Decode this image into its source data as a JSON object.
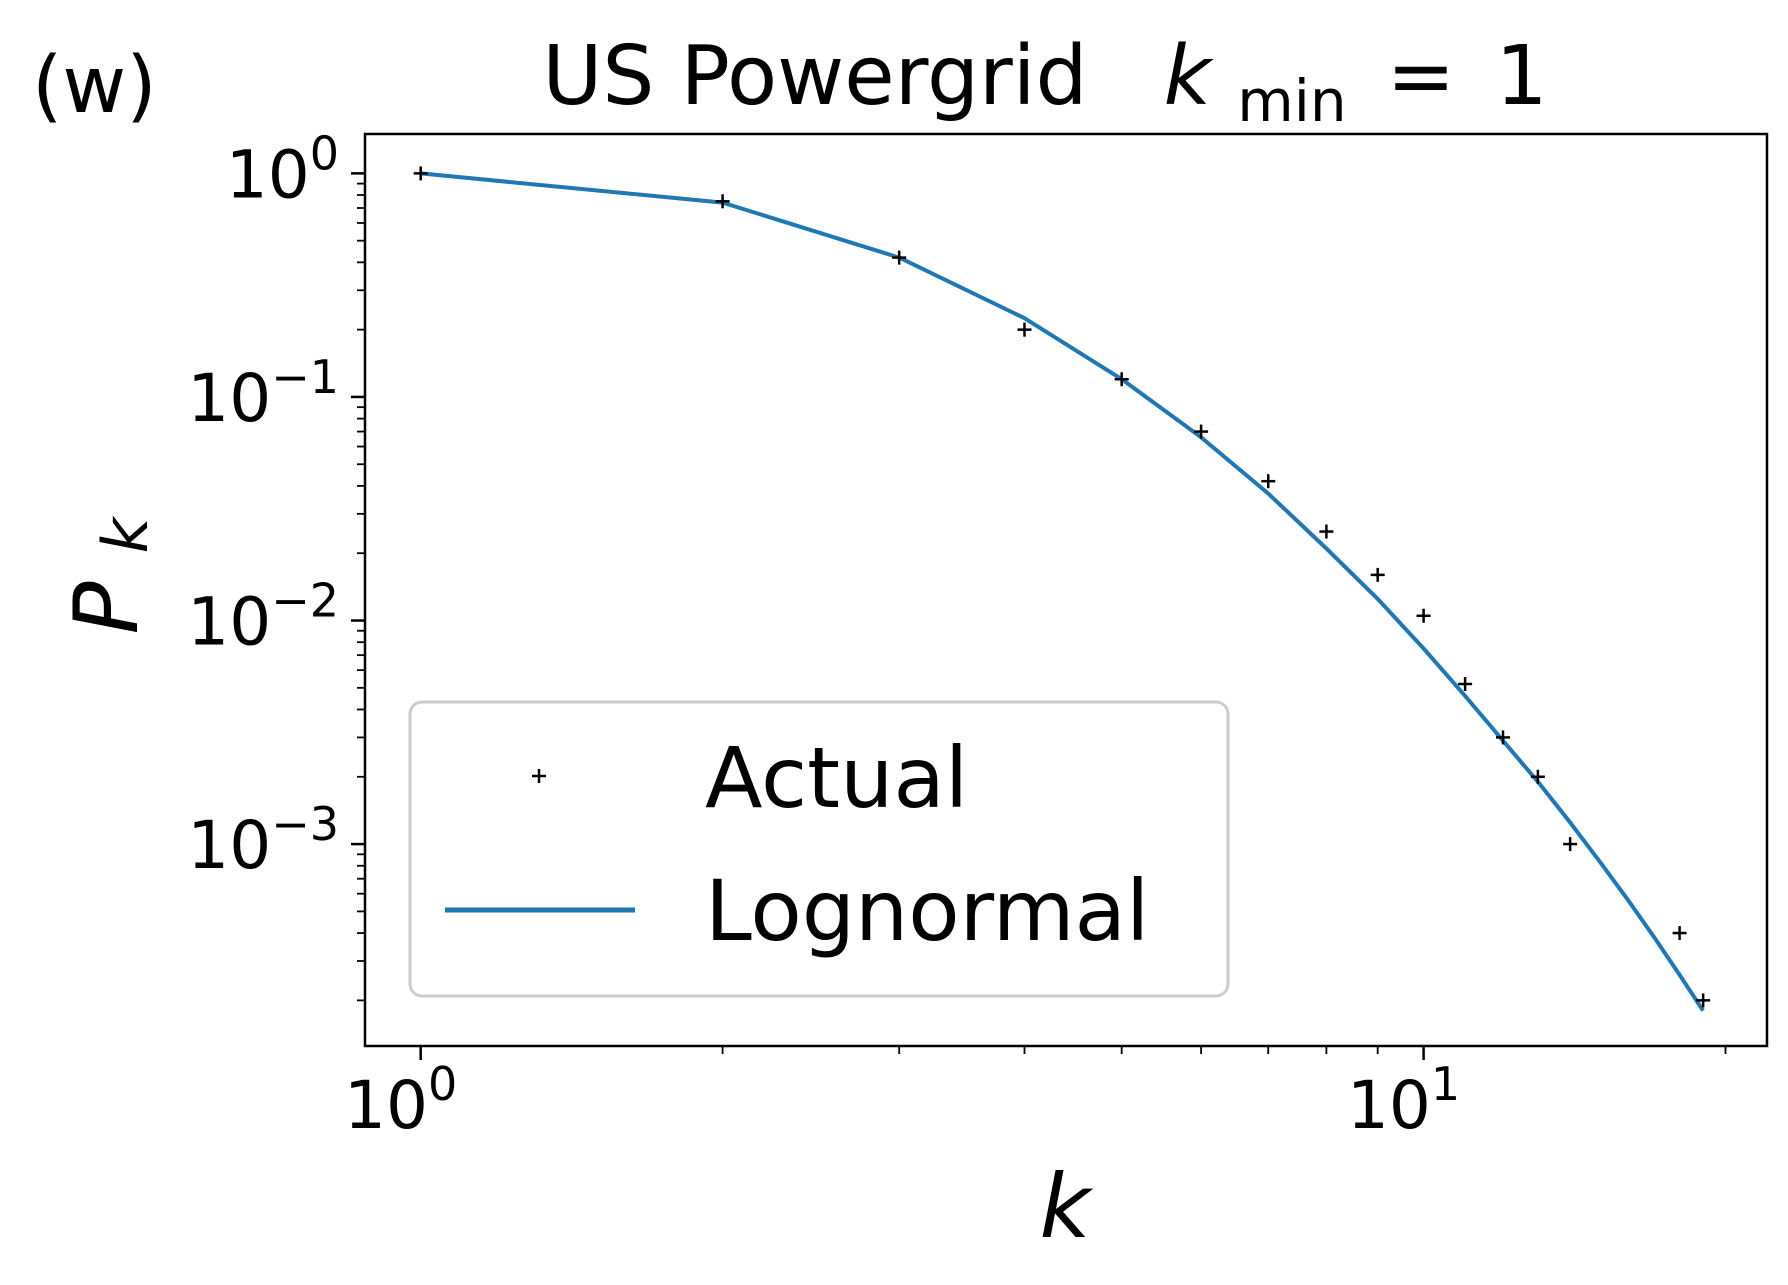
{
  "panel_label": "(w)",
  "title": {
    "prefix": "US Powergrid",
    "k_symbol": "k",
    "k_subscript": "min",
    "equals": "=",
    "value": "1"
  },
  "colors": {
    "lognormal": "#1f77b4",
    "actual": "#000000",
    "legend_border": "#cccccc"
  },
  "chart_data": {
    "type": "line",
    "x_scale": "log",
    "y_scale": "log",
    "xlabel": "k",
    "ylabel_main": "P",
    "ylabel_sub": "k",
    "xlim": [
      0.88,
      22
    ],
    "ylim": [
      0.000125,
      1.5
    ],
    "x_ticks": [
      {
        "value": 1,
        "base": "10",
        "exp": "0"
      },
      {
        "value": 10,
        "base": "10",
        "exp": "1"
      }
    ],
    "y_ticks": [
      {
        "value": 1,
        "base": "10",
        "exp": "0"
      },
      {
        "value": 0.1,
        "base": "10",
        "exp": "−1"
      },
      {
        "value": 0.01,
        "base": "10",
        "exp": "−2"
      },
      {
        "value": 0.001,
        "base": "10",
        "exp": "−3"
      }
    ],
    "grid": false,
    "legend_position": "lower-left",
    "series": [
      {
        "name": "Actual",
        "style": "markers",
        "x": [
          1,
          2,
          3,
          4,
          5,
          6,
          7,
          8,
          9,
          10,
          11,
          12,
          13,
          14,
          18,
          19
        ],
        "y": [
          1.0,
          0.75,
          0.42,
          0.2,
          0.12,
          0.07,
          0.042,
          0.025,
          0.016,
          0.0105,
          0.0052,
          0.003,
          0.002,
          0.001,
          0.0004,
          0.0002
        ]
      },
      {
        "name": "Lognormal",
        "style": "line",
        "x": [
          1,
          2,
          3,
          4,
          5,
          6,
          7,
          8,
          9,
          10,
          11,
          12,
          13,
          14,
          15,
          16,
          17,
          18,
          19
        ],
        "y": [
          1.0,
          0.74,
          0.42,
          0.225,
          0.12,
          0.066,
          0.037,
          0.021,
          0.0125,
          0.0075,
          0.0046,
          0.0029,
          0.0019,
          0.00125,
          0.00083,
          0.00056,
          0.00038,
          0.00026,
          0.00018
        ]
      }
    ]
  }
}
